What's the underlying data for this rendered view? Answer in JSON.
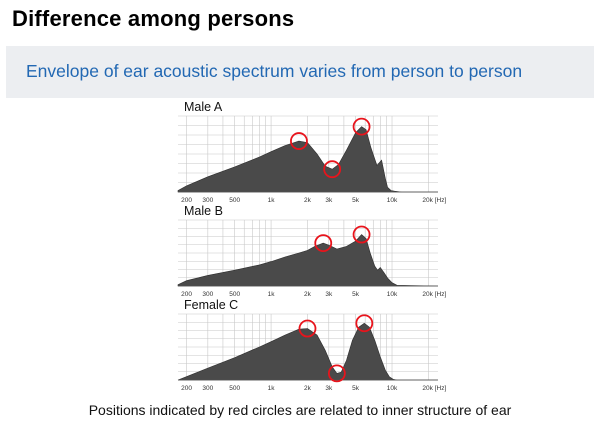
{
  "slide": {
    "title": "Difference among persons",
    "subtitle": "Envelope of ear acoustic spectrum varies from person to person",
    "footnote": "Positions indicated by red circles are related to inner structure of ear"
  },
  "colors": {
    "fill": "#4a4a4a",
    "grid": "#c8c8c8",
    "circle": "#e8141c",
    "axis": "#555555"
  },
  "chart_data": [
    {
      "type": "area",
      "title": "Male A",
      "x_ticks": [
        200,
        300,
        500,
        1000,
        2000,
        3000,
        5000,
        10000,
        20000
      ],
      "tick_labels": [
        "200",
        "300",
        "500",
        "1k",
        "2k",
        "3k",
        "5k",
        "10k",
        "20k [Hz]"
      ],
      "xlim": [
        170,
        24000
      ],
      "x_scale": "log",
      "ylim": [
        0,
        1
      ],
      "grid": true,
      "series": [
        {
          "x": [
            170,
            200,
            300,
            500,
            800,
            1000,
            1300,
            1700,
            2000,
            2400,
            2800,
            3200,
            3600,
            4200,
            5000,
            5600,
            6100,
            6700,
            7500,
            8200,
            8800,
            9200,
            9800,
            10500,
            12000,
            24000
          ],
          "y": [
            0.02,
            0.08,
            0.2,
            0.33,
            0.46,
            0.53,
            0.61,
            0.67,
            0.65,
            0.5,
            0.34,
            0.3,
            0.36,
            0.55,
            0.78,
            0.86,
            0.82,
            0.58,
            0.35,
            0.42,
            0.18,
            0.06,
            0.02,
            0.01,
            0.0,
            0.0
          ]
        }
      ],
      "markers": [
        {
          "x": 1700,
          "y": 0.67
        },
        {
          "x": 3200,
          "y": 0.3
        },
        {
          "x": 5600,
          "y": 0.86
        }
      ]
    },
    {
      "type": "area",
      "title": "Male B",
      "x_ticks": [
        200,
        300,
        500,
        1000,
        2000,
        3000,
        5000,
        10000,
        20000
      ],
      "tick_labels": [
        "200",
        "300",
        "500",
        "1k",
        "2k",
        "3k",
        "5k",
        "10k",
        "20k [Hz]"
      ],
      "xlim": [
        170,
        24000
      ],
      "x_scale": "log",
      "ylim": [
        0,
        1
      ],
      "grid": true,
      "series": [
        {
          "x": [
            170,
            200,
            300,
            500,
            800,
            1000,
            1300,
            1700,
            2000,
            2300,
            2700,
            3000,
            3500,
            4200,
            5000,
            5600,
            6100,
            6600,
            7200,
            7600,
            8000,
            8600,
            9200,
            10000,
            11000,
            24000
          ],
          "y": [
            0.02,
            0.08,
            0.16,
            0.24,
            0.32,
            0.37,
            0.44,
            0.5,
            0.54,
            0.6,
            0.65,
            0.62,
            0.56,
            0.6,
            0.68,
            0.78,
            0.72,
            0.5,
            0.3,
            0.24,
            0.28,
            0.2,
            0.12,
            0.05,
            0.01,
            0.0
          ]
        }
      ],
      "markers": [
        {
          "x": 2700,
          "y": 0.65
        },
        {
          "x": 5600,
          "y": 0.78
        }
      ]
    },
    {
      "type": "area",
      "title": "Female C",
      "x_ticks": [
        200,
        300,
        500,
        1000,
        2000,
        3000,
        5000,
        10000,
        20000
      ],
      "tick_labels": [
        "200",
        "300",
        "500",
        "1k",
        "2k",
        "3k",
        "5k",
        "10k",
        "20k [Hz]"
      ],
      "xlim": [
        170,
        24000
      ],
      "x_scale": "log",
      "ylim": [
        0,
        1
      ],
      "grid": true,
      "series": [
        {
          "x": [
            170,
            200,
            300,
            500,
            800,
            1000,
            1300,
            1700,
            2000,
            2400,
            2800,
            3200,
            3500,
            3800,
            4200,
            4700,
            5300,
            5900,
            6500,
            7200,
            8000,
            8800,
            9500,
            10200,
            11000,
            24000
          ],
          "y": [
            0.0,
            0.05,
            0.18,
            0.34,
            0.5,
            0.58,
            0.68,
            0.77,
            0.78,
            0.68,
            0.45,
            0.2,
            0.1,
            0.12,
            0.3,
            0.6,
            0.8,
            0.86,
            0.8,
            0.6,
            0.35,
            0.15,
            0.05,
            0.01,
            0.0,
            0.0
          ]
        }
      ],
      "markers": [
        {
          "x": 2000,
          "y": 0.78
        },
        {
          "x": 3500,
          "y": 0.1
        },
        {
          "x": 5900,
          "y": 0.86
        }
      ]
    }
  ]
}
